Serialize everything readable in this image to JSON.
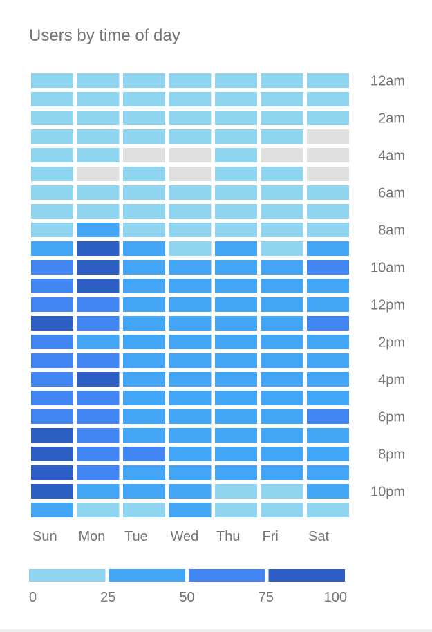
{
  "chart_data": {
    "type": "heatmap",
    "title": "Users by time of day",
    "columns": [
      "Sun",
      "Mon",
      "Tue",
      "Wed",
      "Thu",
      "Fri",
      "Sat"
    ],
    "rows": [
      "12am",
      "1am",
      "2am",
      "3am",
      "4am",
      "5am",
      "6am",
      "7am",
      "8am",
      "9am",
      "10am",
      "11am",
      "12pm",
      "1pm",
      "2pm",
      "3pm",
      "4pm",
      "5pm",
      "6pm",
      "7pm",
      "8pm",
      "9pm",
      "10pm",
      "11pm"
    ],
    "row_tick_labels": [
      "12am",
      "2am",
      "4am",
      "6am",
      "8am",
      "10am",
      "12pm",
      "2pm",
      "4pm",
      "6pm",
      "8pm",
      "10pm"
    ],
    "values": [
      [
        12,
        12,
        12,
        12,
        12,
        12,
        12
      ],
      [
        12,
        12,
        12,
        12,
        12,
        12,
        12
      ],
      [
        12,
        12,
        12,
        12,
        12,
        12,
        12
      ],
      [
        12,
        12,
        12,
        12,
        12,
        12,
        null
      ],
      [
        12,
        12,
        null,
        null,
        12,
        null,
        null
      ],
      [
        12,
        null,
        12,
        null,
        12,
        12,
        null
      ],
      [
        12,
        12,
        12,
        12,
        12,
        12,
        12
      ],
      [
        12,
        12,
        12,
        12,
        12,
        12,
        12
      ],
      [
        12,
        37,
        12,
        12,
        12,
        12,
        12
      ],
      [
        37,
        87,
        37,
        12,
        37,
        12,
        37
      ],
      [
        62,
        87,
        37,
        37,
        37,
        37,
        62
      ],
      [
        62,
        87,
        37,
        37,
        37,
        37,
        37
      ],
      [
        62,
        62,
        37,
        37,
        37,
        37,
        37
      ],
      [
        87,
        62,
        37,
        37,
        37,
        37,
        62
      ],
      [
        62,
        37,
        37,
        37,
        37,
        37,
        37
      ],
      [
        62,
        62,
        37,
        37,
        37,
        37,
        37
      ],
      [
        62,
        87,
        37,
        37,
        37,
        37,
        37
      ],
      [
        62,
        62,
        37,
        37,
        37,
        37,
        37
      ],
      [
        62,
        62,
        37,
        37,
        37,
        37,
        62
      ],
      [
        87,
        62,
        37,
        37,
        37,
        37,
        37
      ],
      [
        87,
        62,
        62,
        37,
        37,
        37,
        37
      ],
      [
        87,
        62,
        37,
        37,
        37,
        37,
        37
      ],
      [
        87,
        37,
        37,
        37,
        12,
        12,
        37
      ],
      [
        37,
        12,
        12,
        37,
        12,
        12,
        12
      ]
    ],
    "legend": {
      "ticks": [
        "0",
        "25",
        "50",
        "75",
        "100"
      ],
      "colors": [
        "#90d5ef",
        "#42a5f5",
        "#4286f4",
        "#2c5ec4"
      ]
    },
    "empty_color": "#e0e0e0",
    "range": [
      0,
      100
    ]
  }
}
